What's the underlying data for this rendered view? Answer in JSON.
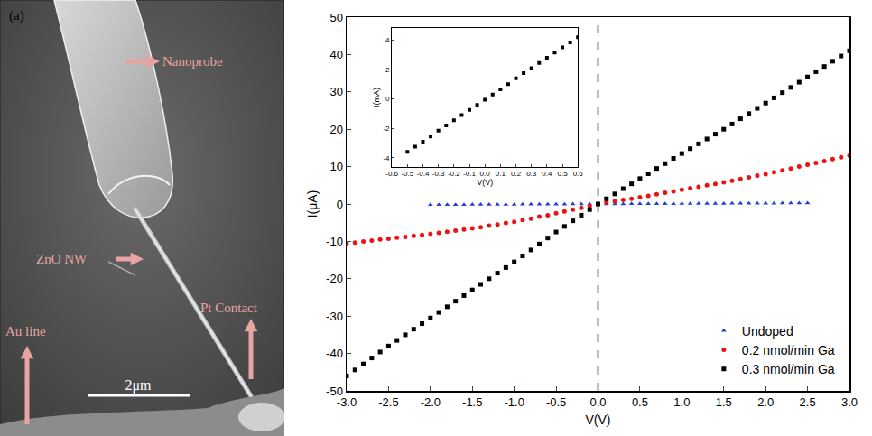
{
  "image_panel": {
    "panel_label": "(a)",
    "labels": [
      "Nanoprobe",
      "ZnO NW",
      "Au line",
      "Pt Contact"
    ],
    "scale_bar": "2μm"
  },
  "chart_data": [
    {
      "type": "scatter",
      "x_label": "V(V)",
      "y_label": "I(μA)",
      "xlim": [
        -3,
        3
      ],
      "xticks": [
        {
          "value": -3,
          "label": "-3.0"
        },
        {
          "value": -2.5,
          "label": "-2.5"
        },
        {
          "value": -2,
          "label": "-2.0"
        },
        {
          "value": -1.5,
          "label": "-1.5"
        },
        {
          "value": -1,
          "label": "-1.0"
        },
        {
          "value": -0.5,
          "label": "-0.5"
        },
        {
          "value": 0,
          "label": "0.0"
        },
        {
          "value": 0.5,
          "label": "0.5"
        },
        {
          "value": 1,
          "label": "1.0"
        },
        {
          "value": 1.5,
          "label": "1.5"
        },
        {
          "value": 2,
          "label": "2.0"
        },
        {
          "value": 2.5,
          "label": "2.5"
        },
        {
          "value": 3,
          "label": "3.0"
        }
      ],
      "ylim": [
        -50,
        50
      ],
      "yticks": [
        -50,
        -40,
        -30,
        -20,
        -10,
        0,
        10,
        20,
        30,
        40,
        50
      ],
      "grid": false,
      "legend": "bottom right",
      "reference_lines": [
        {
          "x": 0,
          "line_style": "dash"
        }
      ],
      "series": [
        {
          "name": "Undoped",
          "color": "#1f3fd6",
          "marker": "triangle-up",
          "x": [
            -2.0,
            -1.9,
            -1.8,
            -1.7,
            -1.6,
            -1.5,
            -1.4,
            -1.3,
            -1.2,
            -1.1,
            -1.0,
            -0.9,
            -0.8,
            -0.7,
            -0.6,
            -0.5,
            -0.4,
            -0.3,
            -0.2,
            -0.1,
            0,
            0.1,
            0.2,
            0.3,
            0.4,
            0.5,
            0.6,
            0.7,
            0.8,
            0.9,
            1.0,
            1.1,
            1.2,
            1.3,
            1.4,
            1.5,
            1.6,
            1.7,
            1.8,
            1.9,
            2.0,
            2.1,
            2.2,
            2.3,
            2.4,
            2.5
          ],
          "values": [
            -0.2,
            -0.19,
            -0.18,
            -0.17,
            -0.16,
            -0.15,
            -0.14,
            -0.13,
            -0.12,
            -0.11,
            -0.1,
            -0.09,
            -0.08,
            -0.07,
            -0.06,
            -0.05,
            -0.04,
            -0.03,
            -0.02,
            -0.01,
            0,
            0.01,
            0.02,
            0.03,
            0.04,
            0.05,
            0.06,
            0.07,
            0.08,
            0.09,
            0.1,
            0.11,
            0.12,
            0.13,
            0.14,
            0.15,
            0.16,
            0.17,
            0.18,
            0.19,
            0.2,
            0.21,
            0.22,
            0.23,
            0.24,
            0.25
          ]
        },
        {
          "name": "0.2 nmol/min Ga",
          "color": "#ee1111",
          "marker": "circle",
          "x": [
            -3.0,
            -2.9,
            -2.8,
            -2.7,
            -2.6,
            -2.5,
            -2.4,
            -2.3,
            -2.2,
            -2.1,
            -2.0,
            -1.9,
            -1.8,
            -1.7,
            -1.6,
            -1.5,
            -1.4,
            -1.3,
            -1.2,
            -1.1,
            -1.0,
            -0.9,
            -0.8,
            -0.7,
            -0.6,
            -0.5,
            -0.4,
            -0.3,
            -0.2,
            -0.1,
            0,
            0.1,
            0.2,
            0.3,
            0.4,
            0.5,
            0.6,
            0.7,
            0.8,
            0.9,
            1.0,
            1.1,
            1.2,
            1.3,
            1.4,
            1.5,
            1.6,
            1.7,
            1.8,
            1.9,
            2.0,
            2.1,
            2.2,
            2.3,
            2.4,
            2.5,
            2.6,
            2.7,
            2.8,
            2.9,
            3.0
          ],
          "values": [
            -10.5,
            -10.3,
            -10.0,
            -9.8,
            -9.5,
            -9.3,
            -9.0,
            -8.8,
            -8.5,
            -8.3,
            -8.0,
            -7.7,
            -7.4,
            -7.1,
            -6.8,
            -6.5,
            -6.2,
            -5.8,
            -5.5,
            -5.1,
            -4.8,
            -4.3,
            -3.9,
            -3.4,
            -3.0,
            -2.5,
            -2.0,
            -1.5,
            -1.0,
            -0.5,
            0,
            0.4,
            0.7,
            1.1,
            1.4,
            1.8,
            2.2,
            2.6,
            3.0,
            3.4,
            3.8,
            4.2,
            4.6,
            5.0,
            5.4,
            5.8,
            6.2,
            6.7,
            7.1,
            7.6,
            8.0,
            8.5,
            9.0,
            9.5,
            10.0,
            10.5,
            11.0,
            11.5,
            12.0,
            12.5,
            13.0
          ]
        },
        {
          "name": "0.3 nmol/min Ga",
          "color": "#000000",
          "marker": "square",
          "x": [
            -3.0,
            -2.9,
            -2.8,
            -2.7,
            -2.6,
            -2.5,
            -2.4,
            -2.3,
            -2.2,
            -2.1,
            -2.0,
            -1.9,
            -1.8,
            -1.7,
            -1.6,
            -1.5,
            -1.4,
            -1.3,
            -1.2,
            -1.1,
            -1.0,
            -0.9,
            -0.8,
            -0.7,
            -0.6,
            -0.5,
            -0.4,
            -0.3,
            -0.2,
            -0.1,
            0,
            0.1,
            0.2,
            0.3,
            0.4,
            0.5,
            0.6,
            0.7,
            0.8,
            0.9,
            1.0,
            1.1,
            1.2,
            1.3,
            1.4,
            1.5,
            1.6,
            1.7,
            1.8,
            1.9,
            2.0,
            2.1,
            2.2,
            2.3,
            2.4,
            2.5,
            2.6,
            2.7,
            2.8,
            2.9,
            3.0
          ],
          "values": [
            -46,
            -44.4,
            -42.8,
            -41.2,
            -39.6,
            -38,
            -36.5,
            -35,
            -33.5,
            -32,
            -30.5,
            -29,
            -27.5,
            -26,
            -24.5,
            -23,
            -21.5,
            -20,
            -18.5,
            -17,
            -15.5,
            -13.9,
            -12.3,
            -10.7,
            -9.1,
            -7.5,
            -6,
            -4.5,
            -3,
            -1.5,
            0,
            1.4,
            2.7,
            4.1,
            5.4,
            6.8,
            8.1,
            9.5,
            10.8,
            12.2,
            13.5,
            14.8,
            16.1,
            17.4,
            18.7,
            20,
            21.4,
            22.8,
            24.2,
            25.6,
            27,
            28.4,
            29.8,
            31.2,
            32.6,
            34,
            35.4,
            36.8,
            38.2,
            39.6,
            41
          ]
        }
      ]
    },
    {
      "type": "scatter",
      "x_label": "V(V)",
      "y_label": "I(mA)",
      "xlim": [
        -0.6,
        0.6
      ],
      "xticks": [
        {
          "value": -0.6,
          "label": "-0.6"
        },
        {
          "value": -0.5,
          "label": "-0.5"
        },
        {
          "value": -0.4,
          "label": "-0.4"
        },
        {
          "value": -0.3,
          "label": "-0.3"
        },
        {
          "value": -0.2,
          "label": "-0.2"
        },
        {
          "value": -0.1,
          "label": "-0.1"
        },
        {
          "value": 0,
          "label": "0.0"
        },
        {
          "value": 0.1,
          "label": "0.1"
        },
        {
          "value": 0.2,
          "label": "0.2"
        },
        {
          "value": 0.3,
          "label": "0.3"
        },
        {
          "value": 0.4,
          "label": "0.4"
        },
        {
          "value": 0.5,
          "label": "0.5"
        },
        {
          "value": 0.6,
          "label": "0.6"
        }
      ],
      "ylim": [
        -4.6,
        4.8
      ],
      "yticks": [
        -4,
        -2,
        0,
        2,
        4
      ],
      "grid": false,
      "color": "#000000",
      "marker": "square",
      "x": [
        -0.5,
        -0.45,
        -0.4,
        -0.35,
        -0.3,
        -0.25,
        -0.2,
        -0.15,
        -0.1,
        -0.05,
        0,
        0.05,
        0.1,
        0.15,
        0.2,
        0.25,
        0.3,
        0.35,
        0.4,
        0.45,
        0.5,
        0.55,
        0.6
      ],
      "values": [
        -3.6,
        -3.25,
        -2.9,
        -2.55,
        -2.15,
        -1.8,
        -1.45,
        -1.1,
        -0.75,
        -0.4,
        -0.05,
        0.3,
        0.65,
        1.0,
        1.4,
        1.75,
        2.1,
        2.45,
        2.8,
        3.15,
        3.5,
        3.85,
        4.2
      ]
    }
  ]
}
